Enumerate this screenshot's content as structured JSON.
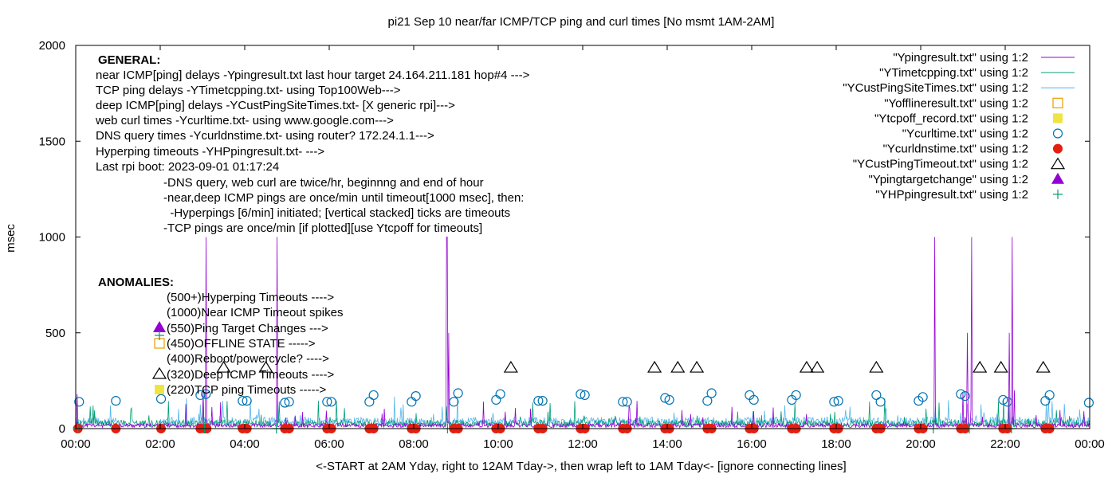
{
  "chart_data": {
    "type": "line",
    "title": "pi21 Sep 10  near/far ICMP/TCP ping and curl times [No msmt 1AM-2AM]",
    "xlabel": "<-START at 2AM Yday, right to 12AM Tday->, then wrap left to 1AM Tday<- [ignore connecting lines]",
    "ylabel": "msec",
    "xlim": [
      0,
      24
    ],
    "ylim": [
      0,
      2000
    ],
    "x_ticks": [
      {
        "v": 0,
        "label": "00:00"
      },
      {
        "v": 2,
        "label": "02:00"
      },
      {
        "v": 4,
        "label": "04:00"
      },
      {
        "v": 6,
        "label": "06:00"
      },
      {
        "v": 8,
        "label": "08:00"
      },
      {
        "v": 10,
        "label": "10:00"
      },
      {
        "v": 12,
        "label": "12:00"
      },
      {
        "v": 14,
        "label": "14:00"
      },
      {
        "v": 16,
        "label": "16:00"
      },
      {
        "v": 18,
        "label": "18:00"
      },
      {
        "v": 20,
        "label": "20:00"
      },
      {
        "v": 22,
        "label": "22:00"
      },
      {
        "v": 24,
        "label": "00:00"
      }
    ],
    "y_ticks": [
      {
        "v": 0,
        "label": "0"
      },
      {
        "v": 500,
        "label": "500"
      },
      {
        "v": 1000,
        "label": "1000"
      },
      {
        "v": 1500,
        "label": "1500"
      },
      {
        "v": 2000,
        "label": "2000"
      }
    ],
    "legend_position": "top-right",
    "legend": [
      {
        "label": "\"Ypingresult.txt\" using 1:2",
        "type": "line",
        "color": "#9400d3"
      },
      {
        "label": "\"YTimetcpping.txt\" using 1:2",
        "type": "line",
        "color": "#009e73"
      },
      {
        "label": "\"YCustPingSiteTimes.txt\" using 1:2",
        "type": "line",
        "color": "#56b4e9"
      },
      {
        "label": "\"Yofflineresult.txt\" using 1:2",
        "type": "open-square",
        "color": "#e69f00"
      },
      {
        "label": "\"Ytcpoff_record.txt\" using 1:2",
        "type": "filled-square",
        "color": "#f0e442"
      },
      {
        "label": "\"Ycurltime.txt\" using 1:2",
        "type": "open-circle",
        "color": "#0072b2"
      },
      {
        "label": "\"Ycurldnstime.txt\" using 1:2",
        "type": "filled-circle",
        "color": "#e51e10"
      },
      {
        "label": "\"YCustPingTimeout.txt\" using 1:2",
        "type": "open-triangle",
        "color": "#000000"
      },
      {
        "label": "\"Ypingtargetchange\" using 1:2",
        "type": "filled-triangle",
        "color": "#9400d3"
      },
      {
        "label": "\"YHPpingresult.txt\" using 1:2",
        "type": "plus",
        "color": "#009e73"
      }
    ],
    "general_heading": "GENERAL:",
    "general_lines": [
      "near ICMP[ping] delays -Ypingresult.txt last hour target 24.164.211.181 hop#4 --->",
      "TCP ping delays -YTimetcpping.txt- using Top100Web--->",
      "deep ICMP[ping] delays -YCustPingSiteTimes.txt- [X generic rpi]--->",
      "web curl times -Ycurltime.txt- using www.google.com--->",
      "DNS query times -Ycurldnstime.txt- using router? 172.24.1.1--->",
      "Hyperping timeouts -YHPpingresult.txt- --->",
      "Last rpi boot: 2023-09-01 01:17:24"
    ],
    "notes": [
      "-DNS query, web curl are twice/hr, beginnng and end of hour",
      "-near,deep ICMP pings are once/min until timeout[1000 msec], then:",
      "  -Hyperpings [6/min] initiated; [vertical stacked] ticks are timeouts",
      "-TCP pings are once/min [if plotted][use Ytcpoff for timeouts]"
    ],
    "anomalies_heading": "ANOMALIES:",
    "anomalies": [
      {
        "label": "(500+)Hyperping Timeouts ---->",
        "marker": "none"
      },
      {
        "label": "(1000)Near ICMP Timeout spikes",
        "marker": "none"
      },
      {
        "label": "(550)Ping Target Changes --->",
        "marker": "filled-triangle"
      },
      {
        "label": "(450)OFFLINE STATE ----->",
        "marker": "open-square"
      },
      {
        "label": "(400)Reboot/powercycle? ---->",
        "marker": "none"
      },
      {
        "label": "(320)Deep ICMP Timeouts ---->",
        "marker": "open-triangle"
      },
      {
        "label": "(220)TCP ping Timeouts ----->",
        "marker": "filled-square"
      }
    ],
    "series": [
      {
        "name": "\"Ypingresult.txt\" using 1:2",
        "color": "#9400d3",
        "baseline_msec": 18,
        "spikes": [
          {
            "x": 3.08,
            "y": 1000
          },
          {
            "x": 4.77,
            "y": 1000
          },
          {
            "x": 8.77,
            "y": 1000
          },
          {
            "x": 8.8,
            "y": 1000
          },
          {
            "x": 8.82,
            "y": 500
          },
          {
            "x": 20.33,
            "y": 1000
          },
          {
            "x": 21.2,
            "y": 1000
          },
          {
            "x": 22.17,
            "y": 1000
          },
          {
            "x": 22.1,
            "y": 500
          },
          {
            "x": 21.1,
            "y": 500
          },
          {
            "x": 3.02,
            "y": 200
          },
          {
            "x": 0.03,
            "y": 180
          },
          {
            "x": 13.1,
            "y": 120
          },
          {
            "x": 16.5,
            "y": 110
          },
          {
            "x": 21.0,
            "y": 190
          },
          {
            "x": 22.22,
            "y": 200
          }
        ]
      },
      {
        "name": "\"YTimetcpping.txt\" using 1:2",
        "color": "#009e73",
        "baseline_msec": 30
      },
      {
        "name": "\"YCustPingSiteTimes.txt\" using 1:2",
        "color": "#56b4e9",
        "baseline_msec": 40
      }
    ],
    "curl_times": [
      {
        "x": 0.08,
        "y": 140
      },
      {
        "x": 0.95,
        "y": 145
      },
      {
        "x": 2.02,
        "y": 155
      },
      {
        "x": 2.95,
        "y": 175
      },
      {
        "x": 3.08,
        "y": 180
      },
      {
        "x": 3.95,
        "y": 145
      },
      {
        "x": 4.05,
        "y": 145
      },
      {
        "x": 4.95,
        "y": 135
      },
      {
        "x": 5.05,
        "y": 140
      },
      {
        "x": 5.95,
        "y": 140
      },
      {
        "x": 6.05,
        "y": 140
      },
      {
        "x": 6.95,
        "y": 140
      },
      {
        "x": 7.05,
        "y": 175
      },
      {
        "x": 7.95,
        "y": 140
      },
      {
        "x": 8.05,
        "y": 170
      },
      {
        "x": 8.95,
        "y": 140
      },
      {
        "x": 9.05,
        "y": 185
      },
      {
        "x": 9.95,
        "y": 150
      },
      {
        "x": 10.05,
        "y": 180
      },
      {
        "x": 10.95,
        "y": 145
      },
      {
        "x": 11.05,
        "y": 145
      },
      {
        "x": 11.95,
        "y": 180
      },
      {
        "x": 12.05,
        "y": 175
      },
      {
        "x": 12.95,
        "y": 140
      },
      {
        "x": 13.05,
        "y": 140
      },
      {
        "x": 13.95,
        "y": 160
      },
      {
        "x": 14.05,
        "y": 150
      },
      {
        "x": 14.95,
        "y": 145
      },
      {
        "x": 15.05,
        "y": 185
      },
      {
        "x": 15.95,
        "y": 175
      },
      {
        "x": 16.05,
        "y": 150
      },
      {
        "x": 16.95,
        "y": 150
      },
      {
        "x": 17.05,
        "y": 175
      },
      {
        "x": 17.95,
        "y": 140
      },
      {
        "x": 18.05,
        "y": 145
      },
      {
        "x": 18.95,
        "y": 175
      },
      {
        "x": 19.05,
        "y": 140
      },
      {
        "x": 19.95,
        "y": 145
      },
      {
        "x": 20.05,
        "y": 165
      },
      {
        "x": 20.95,
        "y": 180
      },
      {
        "x": 21.05,
        "y": 170
      },
      {
        "x": 21.95,
        "y": 150
      },
      {
        "x": 22.05,
        "y": 140
      },
      {
        "x": 22.95,
        "y": 145
      },
      {
        "x": 23.05,
        "y": 175
      },
      {
        "x": 23.98,
        "y": 135
      }
    ],
    "curl_dns_x": [
      0.05,
      0.95,
      2.02,
      2.95,
      3.05,
      3.1,
      3.95,
      4.05,
      4.95,
      5.05,
      5.95,
      6.05,
      6.95,
      7.05,
      7.95,
      8.05,
      8.95,
      9.05,
      9.95,
      10.05,
      10.95,
      11.05,
      11.95,
      12.05,
      12.95,
      13.05,
      13.95,
      14.05,
      14.95,
      15.05,
      15.95,
      16.05,
      16.95,
      17.05,
      17.95,
      18.05,
      18.95,
      19.05,
      19.95,
      20.05,
      20.95,
      21.05,
      21.95,
      22.05,
      22.95,
      23.05
    ],
    "curl_dns_y": 0,
    "cust_ping_timeouts_x": [
      3.5,
      4.5,
      10.3,
      13.7,
      14.25,
      14.7,
      17.3,
      17.55,
      18.95,
      21.4,
      21.9,
      22.9
    ],
    "cust_ping_timeouts_y": 320,
    "hp_ping_timeouts_x": [
      0.05,
      3.05,
      4.75,
      8.8,
      20.3,
      21.15,
      22.15
    ],
    "hp_ping_timeouts_y": 0
  }
}
